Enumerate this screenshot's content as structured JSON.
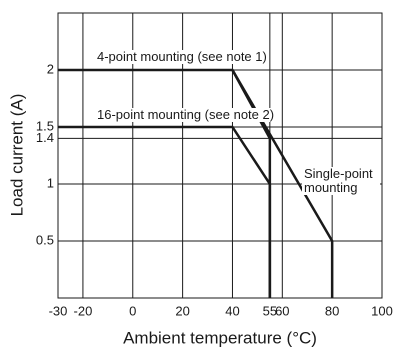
{
  "chart_data": {
    "type": "line",
    "xlabel": "Ambient temperature (°C)",
    "ylabel": "Load current  (A)",
    "xlim": [
      -30,
      100
    ],
    "ylim": [
      0,
      2.5
    ],
    "xticks": [
      -30,
      -20,
      0,
      20,
      40,
      55,
      60,
      80,
      100
    ],
    "yticks": [
      0.5,
      1,
      1.4,
      1.5,
      2
    ],
    "grid": true,
    "series": [
      {
        "name": "4-point mounting (see note 1)",
        "color": "#1a1a1a",
        "x": [
          -30,
          40,
          55,
          55
        ],
        "values": [
          2,
          2,
          1.4,
          0
        ]
      },
      {
        "name": "16-point mounting (see note 2)",
        "color": "#1a1a1a",
        "x": [
          -30,
          40,
          55,
          55
        ],
        "values": [
          1.5,
          1.5,
          1,
          0
        ]
      },
      {
        "name": "Single-point mounting",
        "color": "#1a1a1a",
        "x": [
          40,
          80,
          80
        ],
        "values": [
          2,
          0.5,
          0
        ]
      }
    ]
  }
}
